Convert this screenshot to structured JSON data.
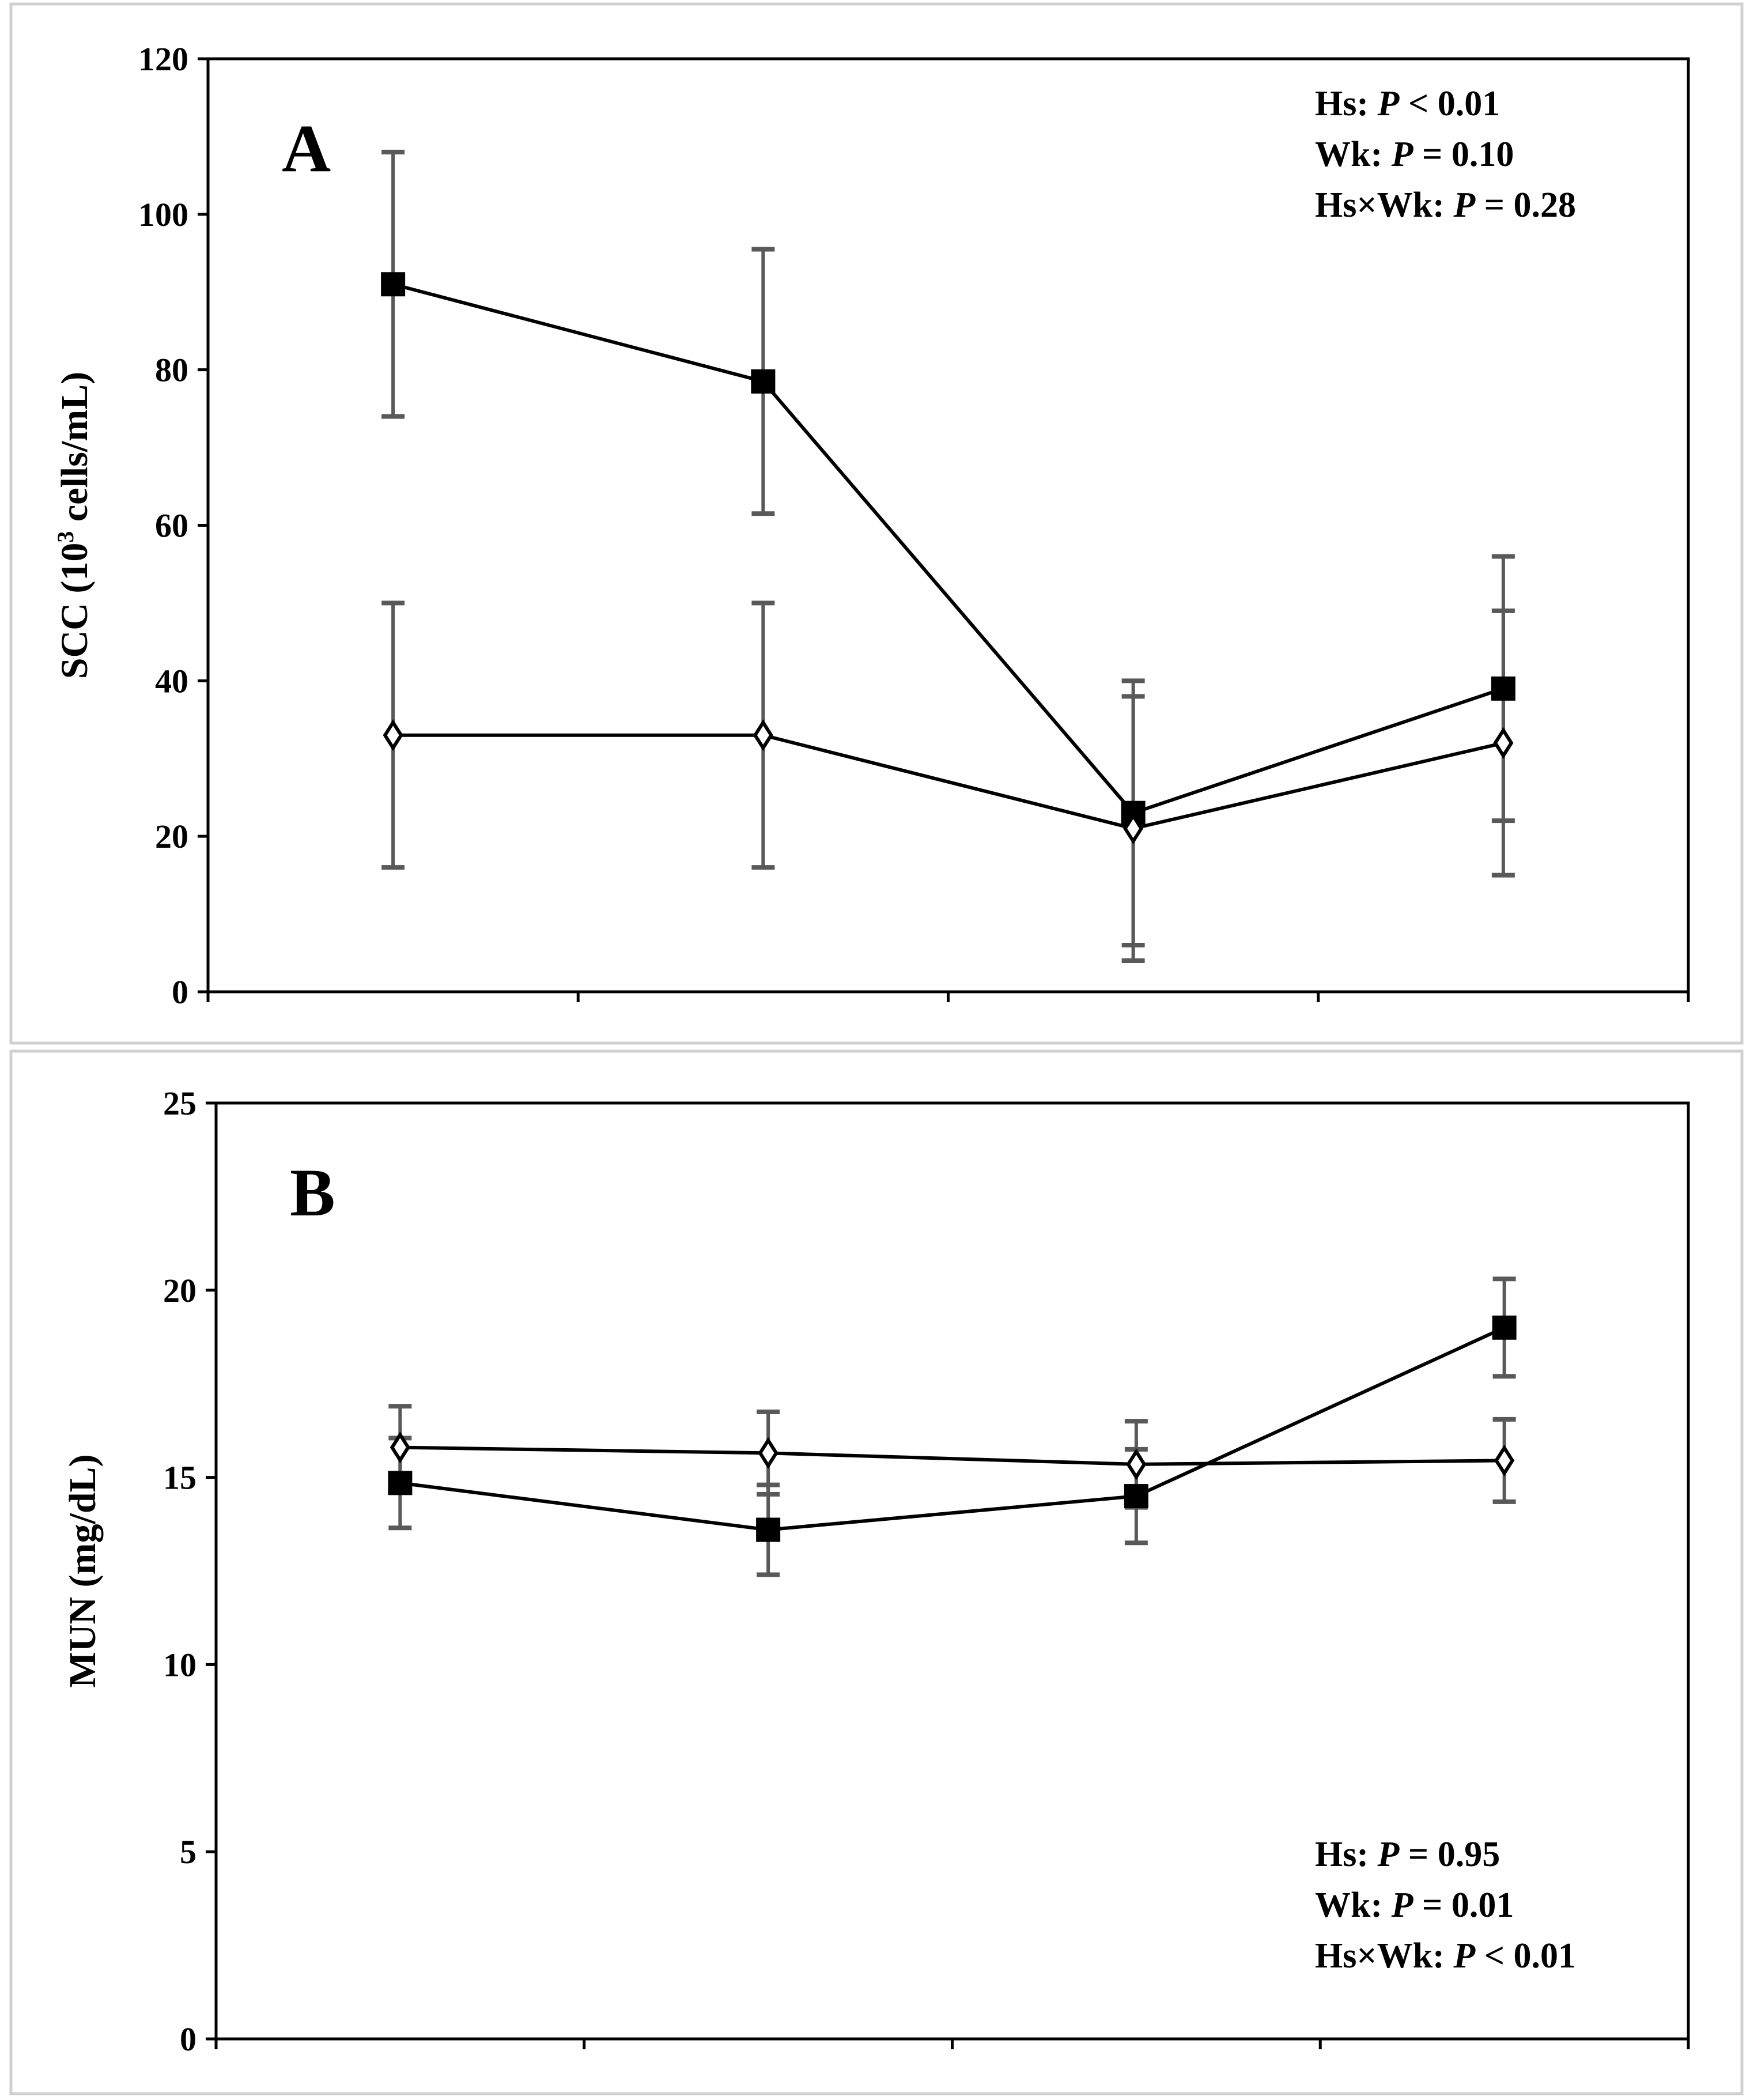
{
  "chart_data": [
    {
      "type": "line",
      "panel_label": "A",
      "ylabel_pre": "SCC (10",
      "ylabel_sup": "3",
      "ylabel_post": " cells/mL)",
      "xlabel": "",
      "ylim": [
        0,
        120
      ],
      "yticks": [
        0,
        20,
        40,
        60,
        80,
        100,
        120
      ],
      "categories": [
        "",
        "",
        "",
        ""
      ],
      "grid": false,
      "stats": [
        {
          "pre": "Hs: ",
          "p": "P",
          "post": " < 0.01"
        },
        {
          "pre": "Wk: ",
          "p": "P",
          "post": " = 0.10"
        },
        {
          "pre": "Hs×Wk: ",
          "p": "P",
          "post": " = 0.28"
        }
      ],
      "stats_position": "top-right",
      "series": [
        {
          "name": "filled-square",
          "marker": "square",
          "values": [
            91,
            78.5,
            23,
            39
          ],
          "err": [
            17,
            17,
            17,
            17
          ]
        },
        {
          "name": "open-diamond",
          "marker": "diamond",
          "values": [
            33,
            33,
            21,
            32
          ],
          "err": [
            17,
            17,
            17,
            17
          ]
        }
      ]
    },
    {
      "type": "line",
      "panel_label": "B",
      "ylabel_pre": "MUN (mg/dL)",
      "ylabel_sup": "",
      "ylabel_post": "",
      "xlabel": "",
      "ylim": [
        0,
        25
      ],
      "yticks": [
        0,
        5,
        10,
        15,
        20,
        25
      ],
      "categories": [
        "",
        "",
        "",
        ""
      ],
      "grid": false,
      "stats": [
        {
          "pre": "Hs: ",
          "p": "P",
          "post": " = 0.95"
        },
        {
          "pre": "Wk: ",
          "p": "P",
          "post": " = 0.01"
        },
        {
          "pre": "Hs×Wk: ",
          "p": "P",
          "post": " < 0.01"
        }
      ],
      "stats_position": "bottom-right",
      "series": [
        {
          "name": "filled-square",
          "marker": "square",
          "values": [
            14.85,
            13.6,
            14.5,
            19.0
          ],
          "err": [
            1.2,
            1.2,
            1.25,
            1.3
          ]
        },
        {
          "name": "open-diamond",
          "marker": "diamond",
          "values": [
            15.8,
            15.65,
            15.35,
            15.45
          ],
          "err": [
            1.1,
            1.1,
            1.15,
            1.1
          ]
        }
      ]
    }
  ],
  "colors": {
    "line": "#000000",
    "errorbar": "#595959",
    "frame": "#d0d0d0"
  }
}
